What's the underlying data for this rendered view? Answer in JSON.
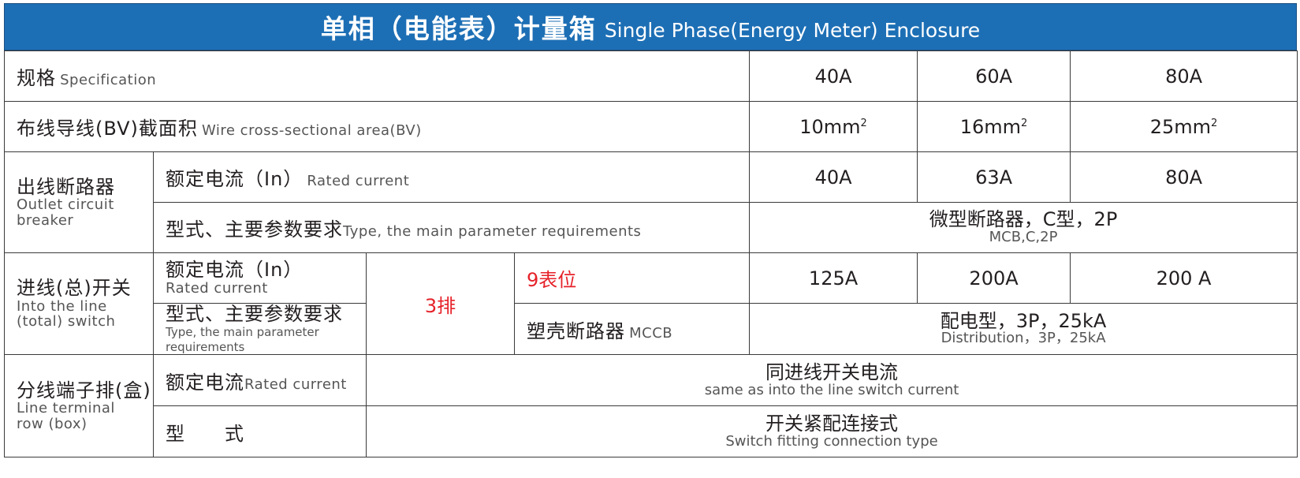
{
  "title": {
    "zh": "单相（电能表）计量箱",
    "en": "Single Phase(Energy Meter) Enclosure"
  },
  "spec": {
    "zh": "规格",
    "en": "Specification",
    "values": [
      "40A",
      "60A",
      "80A"
    ]
  },
  "wire": {
    "zh": "布线导线(BV)截面积",
    "en": "Wire cross-sectional area(BV)",
    "values": [
      {
        "num": "10mm",
        "sup": "2"
      },
      {
        "num": "16mm",
        "sup": "2"
      },
      {
        "num": "25mm",
        "sup": "2"
      }
    ]
  },
  "outlet": {
    "zh": "出线断路器",
    "en1": "Outlet circuit",
    "en2": "breaker",
    "rated": {
      "zh": "额定电流（In）",
      "en": "Rated current",
      "values": [
        "40A",
        "63A",
        "80A"
      ]
    },
    "type": {
      "zh": "型式、主要参数要求",
      "en": "Type, the main parameter requirements",
      "value_zh": "微型断路器，C型，2P",
      "value_en": "MCB,C,2P"
    }
  },
  "inlet": {
    "zh": "进线(总)开关",
    "en1": "Into the line",
    "en2": "(total) switch",
    "rated": {
      "zh": "额定电流（In）",
      "en": "Rated current"
    },
    "type": {
      "zh": "型式、主要参数要求",
      "en": "Type, the main parameter requirements"
    },
    "rows": "3排",
    "positions": "9表位",
    "values": [
      "125A",
      "200A",
      "200 A"
    ],
    "mccb": {
      "zh": "塑壳断路器",
      "en": "MCCB"
    },
    "mccb_value_zh": "配电型，3P，25kA",
    "mccb_value_en": "Distribution，3P，25kA"
  },
  "terminal": {
    "zh": "分线端子排(盒)",
    "en1": "Line terminal",
    "en2": "row (box)",
    "rated": {
      "zh": "额定电流",
      "en": "Rated current",
      "value_zh": "同进线开关电流",
      "value_en": "same as into the line switch current"
    },
    "type": {
      "zh": "型　　式",
      "value_zh": "开关紧配连接式",
      "value_en": "Switch fitting connection type"
    }
  },
  "colors": {
    "header_bg": "#1d6fb5",
    "highlight": "#e62129",
    "border": "#3a3a3a"
  }
}
